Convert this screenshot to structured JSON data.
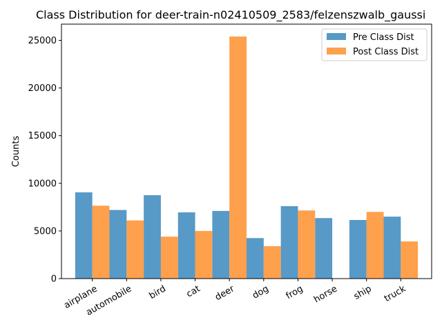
{
  "chart_data": {
    "type": "bar",
    "title": "Class Distribution for deer-train-n02410509_2583/felzenszwalb_gaussi",
    "xlabel": "",
    "ylabel": "Counts",
    "ylim": [
      0,
      26700
    ],
    "yticks": [
      0,
      5000,
      10000,
      15000,
      20000,
      25000
    ],
    "grid": false,
    "legend_position": "top-right",
    "categories": [
      "airplane",
      "automobile",
      "bird",
      "cat",
      "deer",
      "dog",
      "frog",
      "horse",
      "ship",
      "truck"
    ],
    "series": [
      {
        "name": "Pre Class Dist",
        "color": "#5799c7",
        "values": [
          9050,
          7200,
          8750,
          6950,
          7100,
          4250,
          7600,
          6350,
          6150,
          6500
        ]
      },
      {
        "name": "Post Class Dist",
        "color": "#ffa04c",
        "values": [
          7650,
          6100,
          4400,
          5000,
          25400,
          3400,
          7150,
          0,
          7000,
          3900
        ]
      }
    ]
  }
}
